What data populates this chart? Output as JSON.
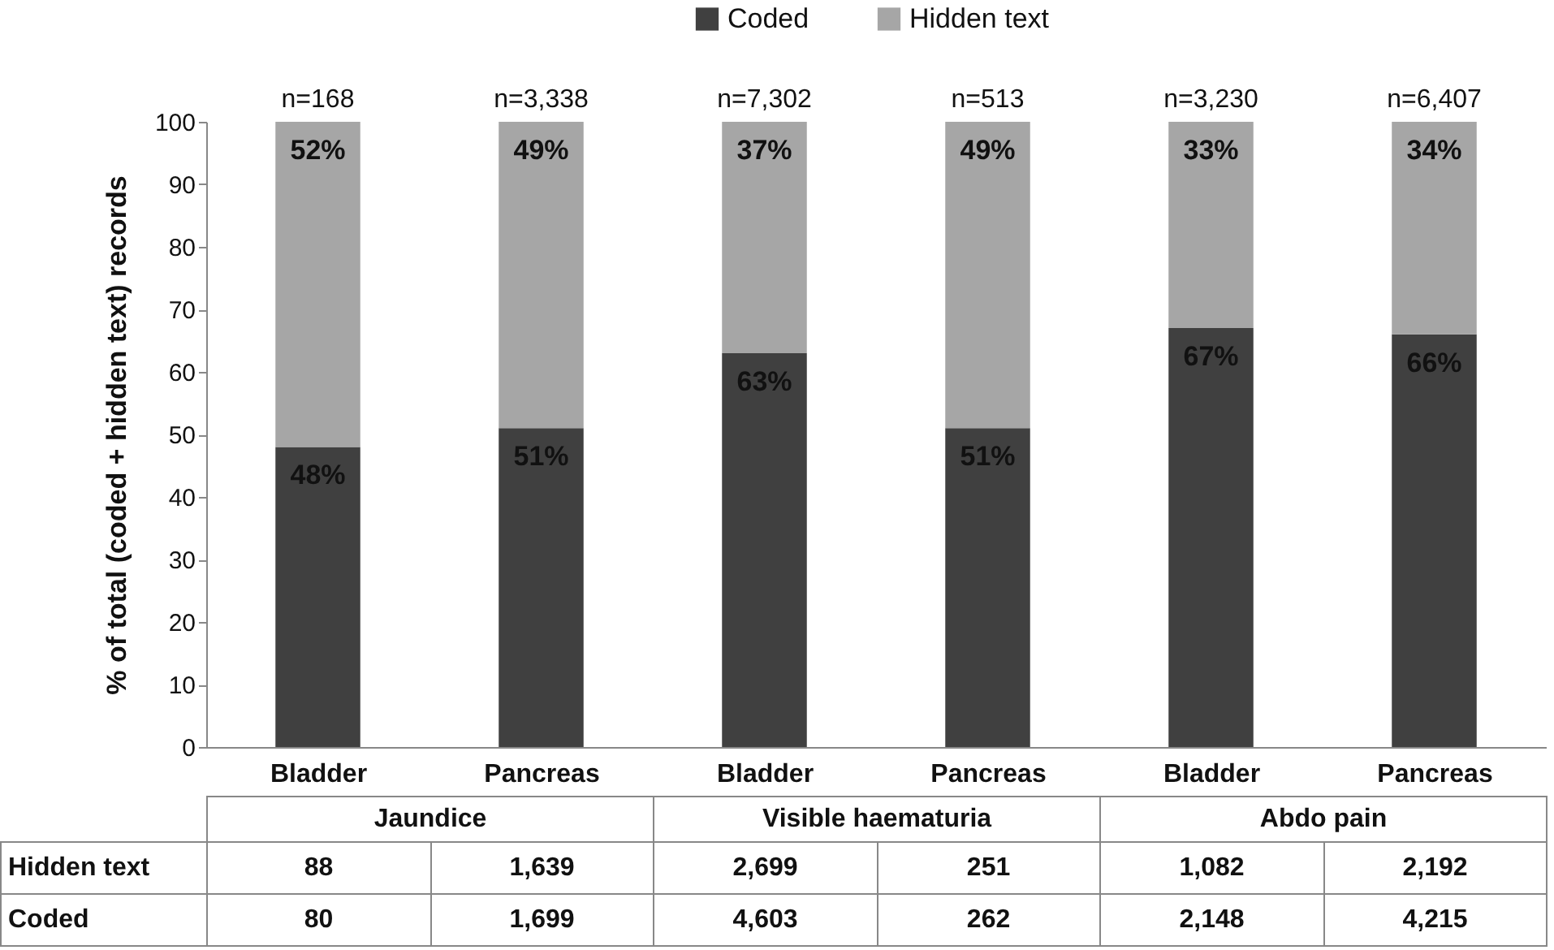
{
  "chart_data": {
    "type": "bar",
    "stacked": true,
    "ylabel": "% of total (coded + hidden text) records",
    "categories": [
      "Bladder",
      "Pancreas",
      "Bladder",
      "Pancreas",
      "Bladder",
      "Pancreas"
    ],
    "series": [
      {
        "name": "Coded",
        "color": "#404040",
        "values": [
          48,
          51,
          63,
          51,
          67,
          66
        ],
        "value_labels": [
          "48%",
          "51%",
          "63%",
          "51%",
          "67%",
          "66%"
        ]
      },
      {
        "name": "Hidden text",
        "color": "#a6a6a6",
        "values": [
          52,
          49,
          37,
          49,
          33,
          34
        ],
        "value_labels": [
          "52%",
          "49%",
          "37%",
          "49%",
          "33%",
          "34%"
        ]
      }
    ],
    "ylim": [
      0,
      100
    ],
    "yticks": [
      0,
      10,
      20,
      30,
      40,
      50,
      60,
      70,
      80,
      90,
      100
    ],
    "grid": false,
    "legend": "top",
    "annotations": [
      "n=168",
      "n=3,338",
      "n=7,302",
      "n=513",
      "n=3,230",
      "n=6,407",
      "Jaundice",
      "Visible haematuria",
      "Abdo pain",
      "Hidden text",
      "88",
      "1,639",
      "2,699",
      "251",
      "1,082",
      "2,192",
      "Coded",
      "80",
      "1,699",
      "4,603",
      "262",
      "2,148",
      "4,215"
    ]
  }
}
